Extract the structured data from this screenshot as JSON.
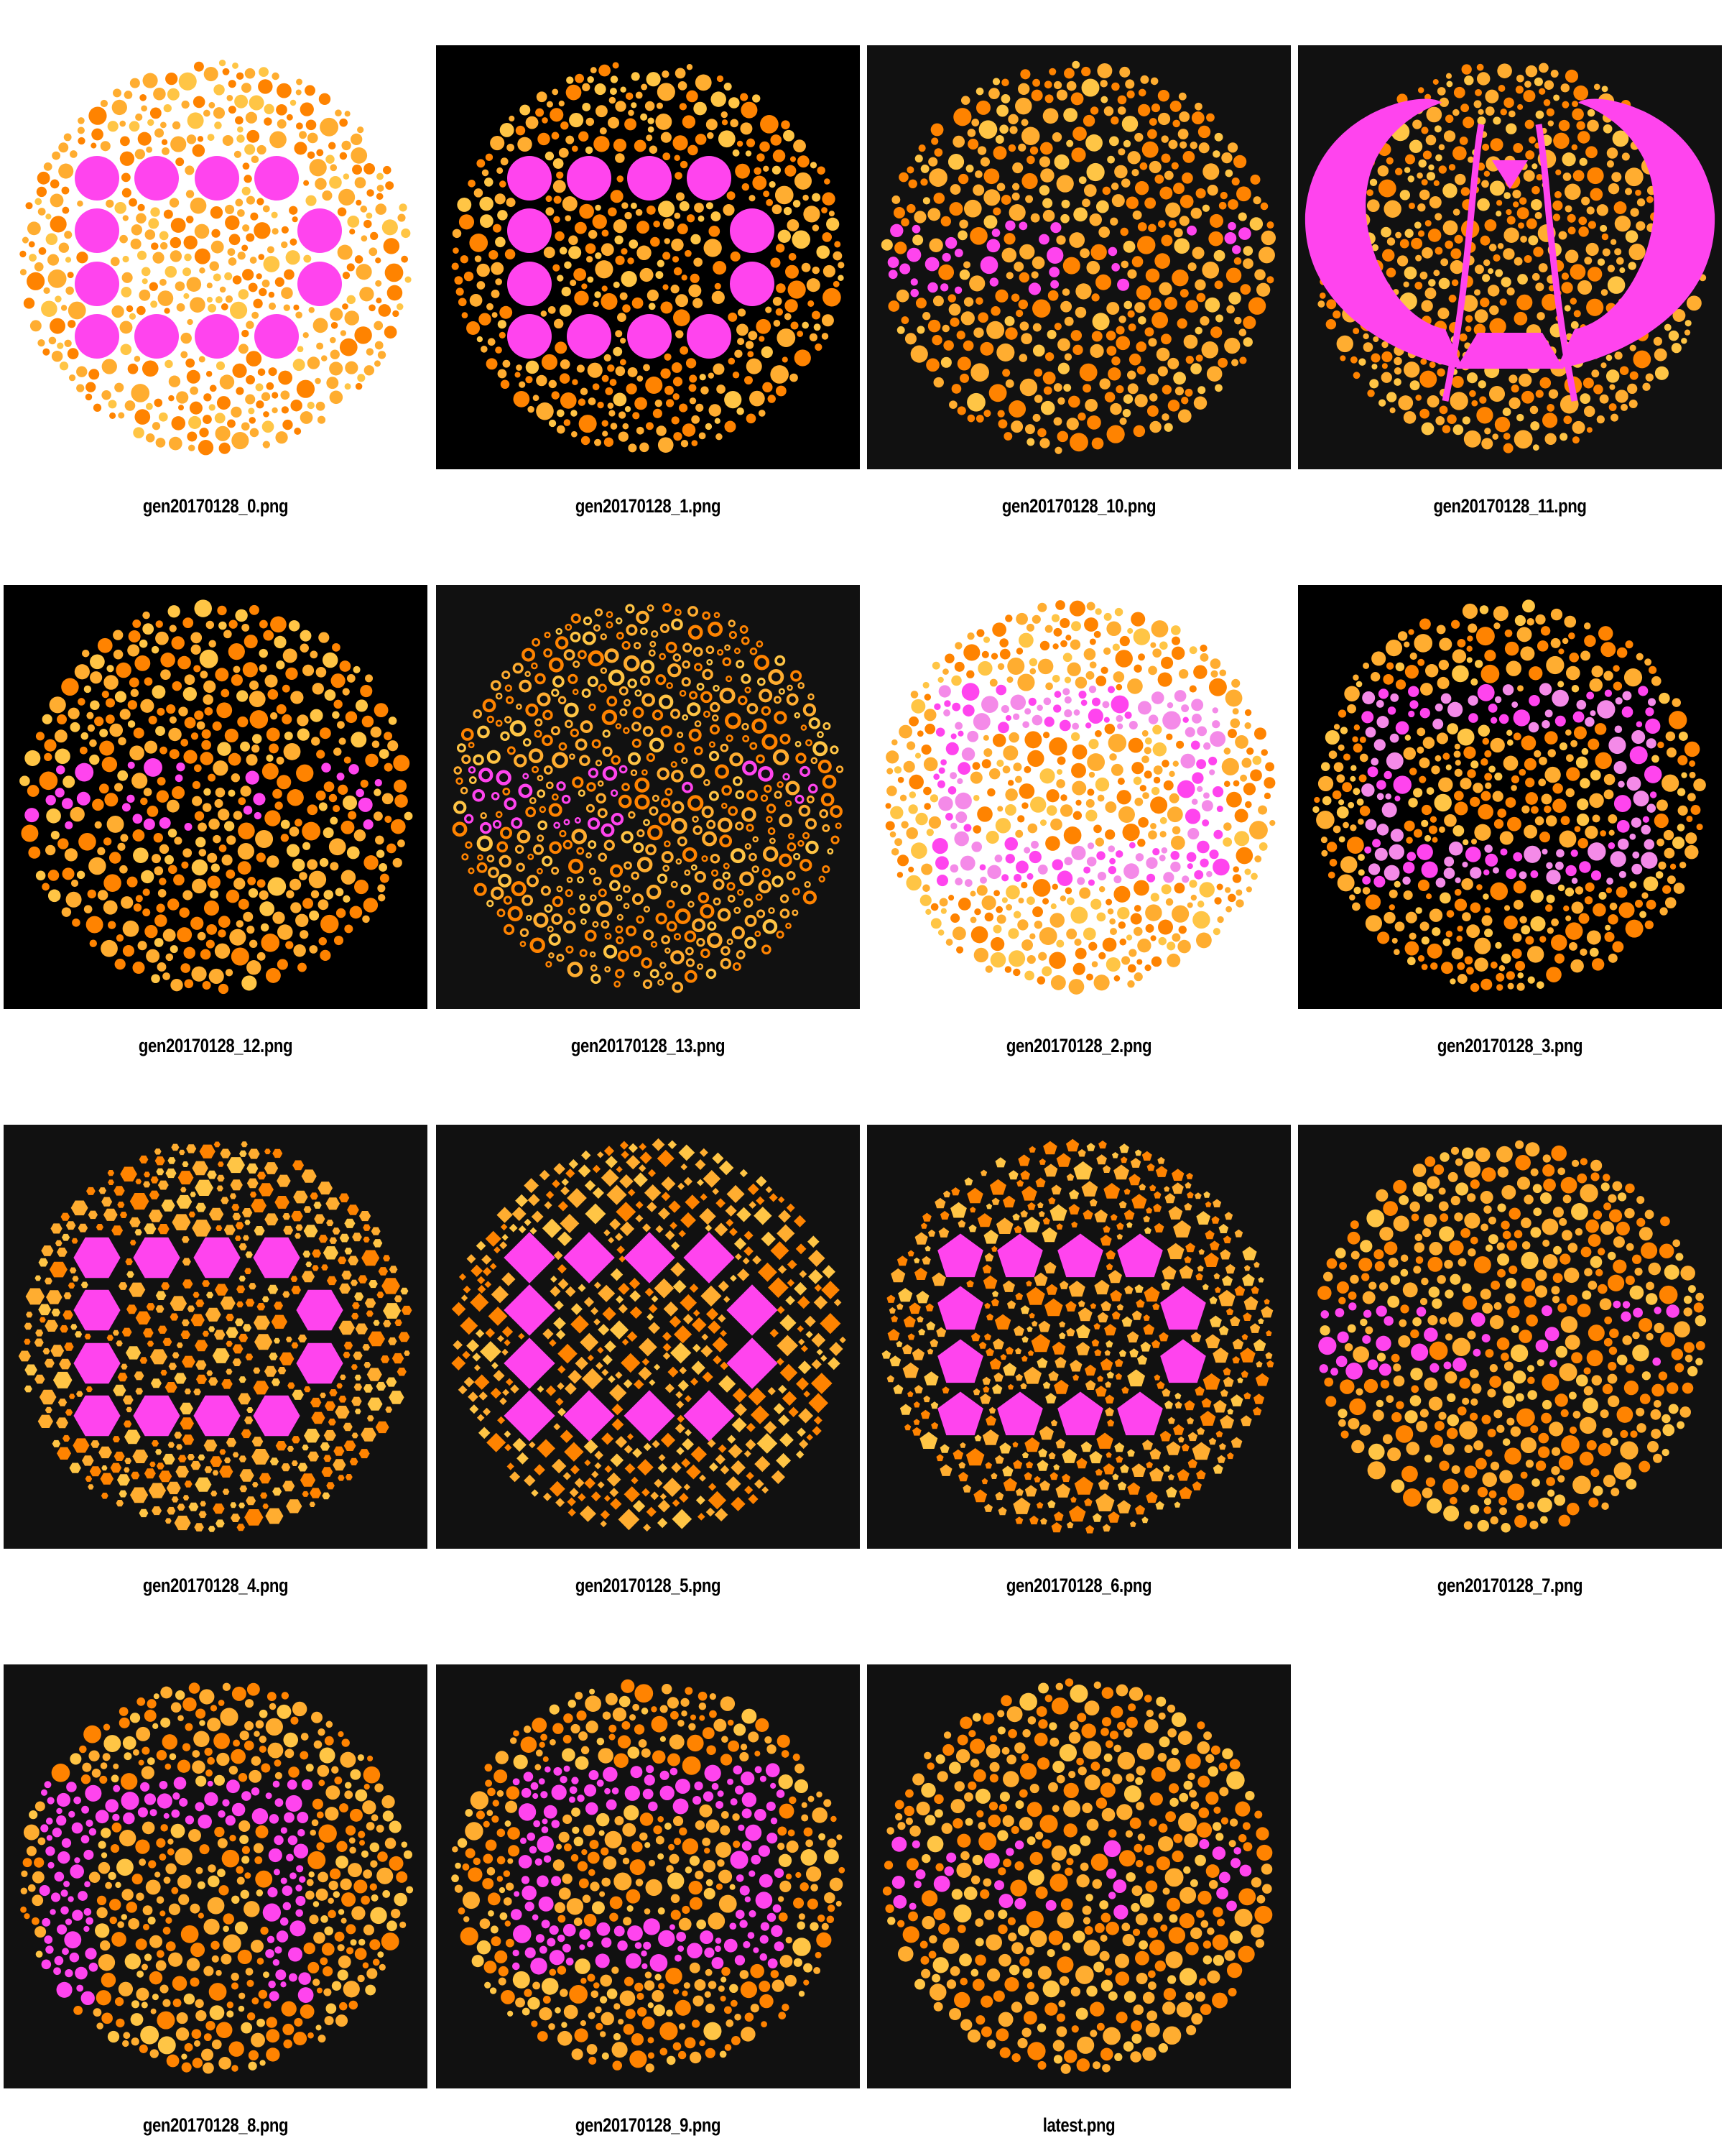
{
  "colors": {
    "black_bg": "#000000",
    "dark_bg": "#111111",
    "white_bg": "#ffffff",
    "magenta": "#ff44ee",
    "pink": "#f48ae8",
    "orange": "#ff8300",
    "amber": "#ffad30",
    "light_orange": "#ffc545"
  },
  "gallery": {
    "items": [
      {
        "file": "gen20170128_0.png",
        "bg": "white",
        "pattern": "ring-of-dots",
        "shape": "circle"
      },
      {
        "file": "gen20170128_1.png",
        "bg": "black",
        "pattern": "ring-of-dots",
        "shape": "circle"
      },
      {
        "file": "gen20170128_10.png",
        "bg": "dark",
        "pattern": "2017-small-dots",
        "shape": "circle"
      },
      {
        "file": "gen20170128_11.png",
        "bg": "dark",
        "pattern": "emblem",
        "shape": "circle"
      },
      {
        "file": "gen20170128_12.png",
        "bg": "black",
        "pattern": "2017-small-dots",
        "shape": "circle"
      },
      {
        "file": "gen20170128_13.png",
        "bg": "dark",
        "pattern": "2017-small-dots",
        "shape": "ring"
      },
      {
        "file": "gen20170128_2.png",
        "bg": "white",
        "pattern": "rect-frame-pink",
        "shape": "circle"
      },
      {
        "file": "gen20170128_3.png",
        "bg": "black",
        "pattern": "rect-frame-pink",
        "shape": "circle"
      },
      {
        "file": "gen20170128_4.png",
        "bg": "dark",
        "pattern": "ring-of-dots",
        "shape": "hexagon"
      },
      {
        "file": "gen20170128_5.png",
        "bg": "dark",
        "pattern": "ring-of-dots",
        "shape": "diamond"
      },
      {
        "file": "gen20170128_6.png",
        "bg": "dark",
        "pattern": "ring-of-dots",
        "shape": "pentagon"
      },
      {
        "file": "gen20170128_7.png",
        "bg": "dark",
        "pattern": "2017-small-dots",
        "shape": "circle"
      },
      {
        "file": "gen20170128_8.png",
        "bg": "dark",
        "pattern": "frame-top-left",
        "shape": "circle"
      },
      {
        "file": "gen20170128_9.png",
        "bg": "dark",
        "pattern": "rect-frame-dots",
        "shape": "circle"
      },
      {
        "file": "latest.png",
        "bg": "dark",
        "pattern": "2017-small-dots",
        "shape": "circle"
      }
    ]
  }
}
